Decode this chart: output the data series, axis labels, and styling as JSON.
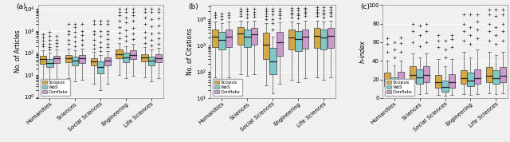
{
  "categories": [
    "Humanities",
    "Sciences",
    "Social Sciences",
    "Engineering",
    "Life Sciences"
  ],
  "panel_labels": [
    "(a)",
    "(b)",
    "(c)"
  ],
  "ylabels": [
    "No. of Articles",
    "No. of Citations",
    "h-index"
  ],
  "colors": {
    "Scopus": "#D4A843",
    "WoS": "#7EC8C8",
    "Conflate": "#CC99CC"
  },
  "legend_labels": [
    "Scopus",
    "WoS",
    "Conflate"
  ],
  "box_width": 0.26,
  "offsets": [
    -0.27,
    0.0,
    0.27
  ],
  "articles": {
    "Humanities": {
      "Scopus": {
        "q1": 32,
        "q2": 52,
        "q3": 72,
        "whislo": 5,
        "whishi": 130,
        "fliers_low": [
          1.2,
          1.5,
          2,
          2.5,
          3
        ],
        "fliers_high": [
          200,
          260,
          350,
          500,
          700
        ]
      },
      "WoS": {
        "q1": 22,
        "q2": 35,
        "q3": 52,
        "whislo": 4,
        "whishi": 100,
        "fliers_low": [],
        "fliers_high": [
          140,
          180,
          250,
          400,
          600,
          900
        ]
      },
      "Conflate": {
        "q1": 35,
        "q2": 55,
        "q3": 76,
        "whislo": 5,
        "whishi": 140,
        "fliers_low": [],
        "fliers_high": [
          200,
          280,
          400,
          600
        ]
      }
    },
    "Sciences": {
      "Scopus": {
        "q1": 38,
        "q2": 58,
        "q3": 82,
        "whislo": 7,
        "whishi": 160,
        "fliers_low": [],
        "fliers_high": [
          250,
          400,
          700,
          1000,
          2000
        ]
      },
      "WoS": {
        "q1": 28,
        "q2": 45,
        "q3": 66,
        "whislo": 5,
        "whishi": 130,
        "fliers_low": [],
        "fliers_high": [
          200,
          320,
          550,
          900,
          1500,
          2000
        ]
      },
      "Conflate": {
        "q1": 36,
        "q2": 55,
        "q3": 78,
        "whislo": 6,
        "whishi": 150,
        "fliers_low": [],
        "fliers_high": [
          240,
          380,
          650,
          1000,
          2000
        ]
      }
    },
    "Social Sciences": {
      "Scopus": {
        "q1": 26,
        "q2": 40,
        "q3": 58,
        "whislo": 4,
        "whishi": 110,
        "fliers_low": [],
        "fliers_high": [
          160,
          240,
          400,
          700,
          1000,
          2000,
          3000
        ]
      },
      "WoS": {
        "q1": 12,
        "q2": 22,
        "q3": 40,
        "whislo": 2,
        "whishi": 80,
        "fliers_low": [],
        "fliers_high": [
          120,
          180,
          300,
          600,
          1000,
          2000,
          3000
        ]
      },
      "Conflate": {
        "q1": 28,
        "q2": 44,
        "q3": 64,
        "whislo": 4,
        "whishi": 120,
        "fliers_low": [],
        "fliers_high": [
          180,
          260,
          420,
          700,
          1000,
          2000,
          3000
        ]
      }
    },
    "Engineering": {
      "Scopus": {
        "q1": 55,
        "q2": 90,
        "q3": 140,
        "whislo": 10,
        "whishi": 280,
        "fliers_low": [],
        "fliers_high": [
          450,
          800,
          1500,
          3000,
          5000,
          7000,
          10000
        ]
      },
      "WoS": {
        "q1": 38,
        "q2": 62,
        "q3": 100,
        "whislo": 7,
        "whishi": 200,
        "fliers_low": [],
        "fliers_high": [
          350,
          600,
          1100,
          2500,
          4000,
          7000,
          10000
        ]
      },
      "Conflate": {
        "q1": 52,
        "q2": 82,
        "q3": 128,
        "whislo": 9,
        "whishi": 260,
        "fliers_low": [],
        "fliers_high": [
          420,
          750,
          1400,
          2800,
          5000,
          7000,
          10000
        ]
      }
    },
    "Life Sciences": {
      "Scopus": {
        "q1": 40,
        "q2": 62,
        "q3": 90,
        "whislo": 8,
        "whishi": 180,
        "fliers_low": [],
        "fliers_high": [
          280,
          500,
          900,
          2000,
          4000,
          7000,
          10000
        ]
      },
      "WoS": {
        "q1": 28,
        "q2": 46,
        "q3": 70,
        "whislo": 5,
        "whishi": 140,
        "fliers_low": [],
        "fliers_high": [
          220,
          400,
          750,
          1600,
          3500,
          7000,
          10000
        ]
      },
      "Conflate": {
        "q1": 38,
        "q2": 58,
        "q3": 85,
        "whislo": 7,
        "whishi": 165,
        "fliers_low": [],
        "fliers_high": [
          260,
          460,
          840,
          1800,
          3800,
          7000,
          10000
        ]
      }
    }
  },
  "citations": {
    "Humanities": {
      "Scopus": {
        "q1": 900,
        "q2": 2200,
        "q3": 4200,
        "whislo": 60,
        "whishi": 8000,
        "fliers_low": [],
        "fliers_high": [
          12000,
          14000,
          18000
        ]
      },
      "WoS": {
        "q1": 700,
        "q2": 1600,
        "q3": 3400,
        "whislo": 50,
        "whishi": 7000,
        "fliers_low": [],
        "fliers_high": [
          10000,
          13000,
          17000
        ]
      },
      "Conflate": {
        "q1": 900,
        "q2": 2200,
        "q3": 4200,
        "whislo": 60,
        "whishi": 8000,
        "fliers_low": [],
        "fliers_high": [
          12000,
          14000,
          18000
        ]
      }
    },
    "Sciences": {
      "Scopus": {
        "q1": 1100,
        "q2": 2800,
        "q3": 5000,
        "whislo": 80,
        "whishi": 9000,
        "fliers_low": [],
        "fliers_high": [
          13000,
          16000,
          20000,
          25000
        ]
      },
      "WoS": {
        "q1": 900,
        "q2": 2200,
        "q3": 4200,
        "whislo": 70,
        "whishi": 8000,
        "fliers_low": [],
        "fliers_high": [
          12000,
          15000,
          20000,
          25000
        ]
      },
      "Conflate": {
        "q1": 1100,
        "q2": 2700,
        "q3": 4800,
        "whislo": 80,
        "whishi": 8500,
        "fliers_low": [],
        "fliers_high": [
          12500,
          15500,
          19000,
          25000
        ]
      }
    },
    "Social Sciences": {
      "Scopus": {
        "q1": 300,
        "q2": 1100,
        "q3": 3000,
        "whislo": 30,
        "whishi": 7000,
        "fliers_low": [],
        "fliers_high": [
          10000,
          13000,
          16000,
          20000,
          25000
        ]
      },
      "WoS": {
        "q1": 80,
        "q2": 250,
        "q3": 800,
        "whislo": 15,
        "whishi": 2200,
        "fliers_low": [],
        "fliers_high": [
          4000,
          7000,
          10000,
          15000,
          20000,
          25000
        ]
      },
      "Conflate": {
        "q1": 400,
        "q2": 1300,
        "q3": 3300,
        "whislo": 35,
        "whishi": 7500,
        "fliers_low": [],
        "fliers_high": [
          11000,
          14000,
          17000,
          21000,
          25000
        ]
      }
    },
    "Engineering": {
      "Scopus": {
        "q1": 700,
        "q2": 2000,
        "q3": 4000,
        "whislo": 50,
        "whishi": 8000,
        "fliers_low": [],
        "fliers_high": [
          12000,
          15000,
          18000,
          22000,
          27000
        ]
      },
      "WoS": {
        "q1": 600,
        "q2": 1700,
        "q3": 3500,
        "whislo": 40,
        "whishi": 7000,
        "fliers_low": [],
        "fliers_high": [
          11000,
          14000,
          17000,
          22000,
          27000
        ]
      },
      "Conflate": {
        "q1": 750,
        "q2": 2100,
        "q3": 4200,
        "whislo": 55,
        "whishi": 8500,
        "fliers_low": [],
        "fliers_high": [
          13000,
          16000,
          19000,
          23000,
          27000
        ]
      }
    },
    "Life Sciences": {
      "Scopus": {
        "q1": 800,
        "q2": 2300,
        "q3": 4600,
        "whislo": 60,
        "whishi": 9000,
        "fliers_low": [],
        "fliers_high": [
          13000,
          16000,
          19000,
          23000,
          28000
        ]
      },
      "WoS": {
        "q1": 700,
        "q2": 2000,
        "q3": 4000,
        "whislo": 50,
        "whishi": 8000,
        "fliers_low": [],
        "fliers_high": [
          12000,
          15000,
          18000,
          22000,
          28000
        ]
      },
      "Conflate": {
        "q1": 800,
        "q2": 2300,
        "q3": 4600,
        "whislo": 60,
        "whishi": 9000,
        "fliers_low": [],
        "fliers_high": [
          13000,
          16000,
          19000,
          23000,
          28000
        ]
      }
    }
  },
  "hindex": {
    "Humanities": {
      "Scopus": {
        "q1": 13,
        "q2": 19,
        "q3": 27,
        "whislo": 3,
        "whishi": 40,
        "fliers_high": [
          50,
          58,
          64
        ]
      },
      "WoS": {
        "q1": 10,
        "q2": 15,
        "q3": 22,
        "whislo": 2,
        "whishi": 35,
        "fliers_high": [
          44,
          52,
          60
        ]
      },
      "Conflate": {
        "q1": 13,
        "q2": 19,
        "q3": 28,
        "whislo": 3,
        "whishi": 40,
        "fliers_high": [
          50,
          59,
          65
        ]
      }
    },
    "Sciences": {
      "Scopus": {
        "q1": 17,
        "q2": 25,
        "q3": 34,
        "whislo": 5,
        "whishi": 48,
        "fliers_high": [
          60,
          72,
          80
        ]
      },
      "WoS": {
        "q1": 15,
        "q2": 22,
        "q3": 31,
        "whislo": 4,
        "whishi": 44,
        "fliers_high": [
          56,
          68,
          78
        ]
      },
      "Conflate": {
        "q1": 17,
        "q2": 25,
        "q3": 34,
        "whislo": 5,
        "whishi": 48,
        "fliers_high": [
          60,
          72,
          80
        ]
      }
    },
    "Social Sciences": {
      "Scopus": {
        "q1": 11,
        "q2": 17,
        "q3": 25,
        "whislo": 3,
        "whishi": 42,
        "fliers_high": [
          55,
          62,
          68
        ]
      },
      "WoS": {
        "q1": 7,
        "q2": 12,
        "q3": 19,
        "whislo": 2,
        "whishi": 34,
        "fliers_high": [
          44,
          52,
          62
        ]
      },
      "Conflate": {
        "q1": 11,
        "q2": 17,
        "q3": 26,
        "whislo": 3,
        "whishi": 42,
        "fliers_high": [
          55,
          63,
          68
        ]
      }
    },
    "Engineering": {
      "Scopus": {
        "q1": 15,
        "q2": 21,
        "q3": 30,
        "whislo": 4,
        "whishi": 50,
        "fliers_high": [
          62,
          72,
          80,
          90
        ]
      },
      "WoS": {
        "q1": 13,
        "q2": 19,
        "q3": 27,
        "whislo": 3,
        "whishi": 44,
        "fliers_high": [
          58,
          68,
          76,
          90
        ]
      },
      "Conflate": {
        "q1": 15,
        "q2": 21,
        "q3": 31,
        "whislo": 4,
        "whishi": 52,
        "fliers_high": [
          64,
          74,
          82,
          90
        ]
      }
    },
    "Life Sciences": {
      "Scopus": {
        "q1": 17,
        "q2": 24,
        "q3": 33,
        "whislo": 5,
        "whishi": 50,
        "fliers_high": [
          62,
          72,
          80,
          90,
          95
        ]
      },
      "WoS": {
        "q1": 15,
        "q2": 21,
        "q3": 30,
        "whislo": 4,
        "whishi": 46,
        "fliers_high": [
          58,
          68,
          76,
          88,
          95
        ]
      },
      "Conflate": {
        "q1": 17,
        "q2": 24,
        "q3": 33,
        "whislo": 5,
        "whishi": 50,
        "fliers_high": [
          62,
          72,
          80,
          90,
          95
        ]
      }
    }
  }
}
